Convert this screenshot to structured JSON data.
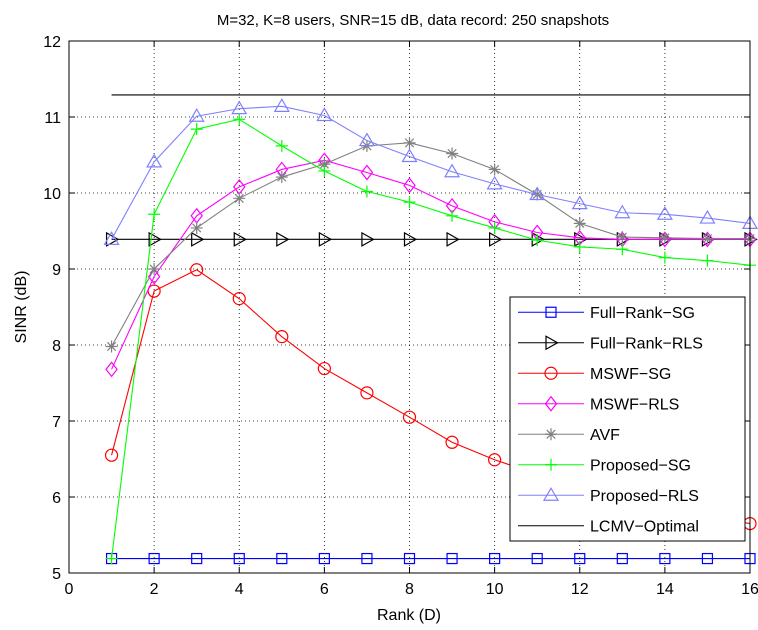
{
  "chart_data": {
    "type": "line",
    "title": "M=32, K=8 users, SNR=15 dB, data record: 250 snapshots",
    "xlabel": "Rank (D)",
    "ylabel": "SINR (dB)",
    "xlim": [
      0,
      16
    ],
    "ylim": [
      5,
      12
    ],
    "xticks": [
      0,
      2,
      4,
      6,
      8,
      10,
      12,
      14,
      16
    ],
    "yticks": [
      5,
      6,
      7,
      8,
      9,
      10,
      11,
      12
    ],
    "grid": true,
    "legend_position": "lower-right",
    "x": [
      1,
      2,
      3,
      4,
      5,
      6,
      7,
      8,
      9,
      10,
      11,
      12,
      13,
      14,
      15,
      16
    ],
    "series": [
      {
        "name": "Full−Rank−SG",
        "color": "#0000ff",
        "marker": "square",
        "values": [
          5.19,
          5.19,
          5.19,
          5.19,
          5.19,
          5.19,
          5.19,
          5.19,
          5.19,
          5.19,
          5.19,
          5.19,
          5.19,
          5.19,
          5.19,
          5.19
        ]
      },
      {
        "name": "Full−Rank−RLS",
        "color": "#000000",
        "marker": "triangle-right",
        "values": [
          9.39,
          9.39,
          9.39,
          9.39,
          9.39,
          9.39,
          9.39,
          9.39,
          9.39,
          9.39,
          9.39,
          9.39,
          9.39,
          9.39,
          9.39,
          9.39
        ]
      },
      {
        "name": "MSWF−SG",
        "color": "#ff0000",
        "marker": "circle",
        "values": [
          6.55,
          8.71,
          8.99,
          8.61,
          8.11,
          7.69,
          7.37,
          7.05,
          6.72,
          6.49,
          6.3,
          6.12,
          5.97,
          5.84,
          5.74,
          5.65
        ]
      },
      {
        "name": "MSWF−RLS",
        "color": "#ff00ff",
        "marker": "diamond",
        "values": [
          7.68,
          8.9,
          9.7,
          10.08,
          10.31,
          10.43,
          10.27,
          10.1,
          9.83,
          9.62,
          9.48,
          9.41,
          9.39,
          9.39,
          9.39,
          9.39
        ]
      },
      {
        "name": "AVF",
        "color": "#808080",
        "marker": "asterisk",
        "values": [
          7.98,
          9.0,
          9.54,
          9.93,
          10.21,
          10.38,
          10.62,
          10.66,
          10.52,
          10.31,
          9.98,
          9.6,
          9.42,
          9.41,
          9.4,
          9.4
        ]
      },
      {
        "name": "Proposed−SG",
        "color": "#00ff00",
        "marker": "plus",
        "values": [
          5.19,
          9.72,
          10.84,
          10.97,
          10.62,
          10.29,
          10.02,
          9.88,
          9.7,
          9.54,
          9.38,
          9.29,
          9.26,
          9.15,
          9.11,
          9.05
        ]
      },
      {
        "name": "Proposed−RLS",
        "color": "#8080ff",
        "marker": "triangle-up",
        "values": [
          9.39,
          10.41,
          11.01,
          11.11,
          11.14,
          11.02,
          10.69,
          10.48,
          10.28,
          10.12,
          9.98,
          9.86,
          9.74,
          9.72,
          9.67,
          9.6
        ]
      },
      {
        "name": "LCMV−Optimal",
        "color": "#000000",
        "marker": "none",
        "values": [
          11.29,
          11.29,
          11.29,
          11.29,
          11.29,
          11.29,
          11.29,
          11.29,
          11.29,
          11.29,
          11.29,
          11.29,
          11.29,
          11.29,
          11.29,
          11.29
        ]
      }
    ]
  }
}
